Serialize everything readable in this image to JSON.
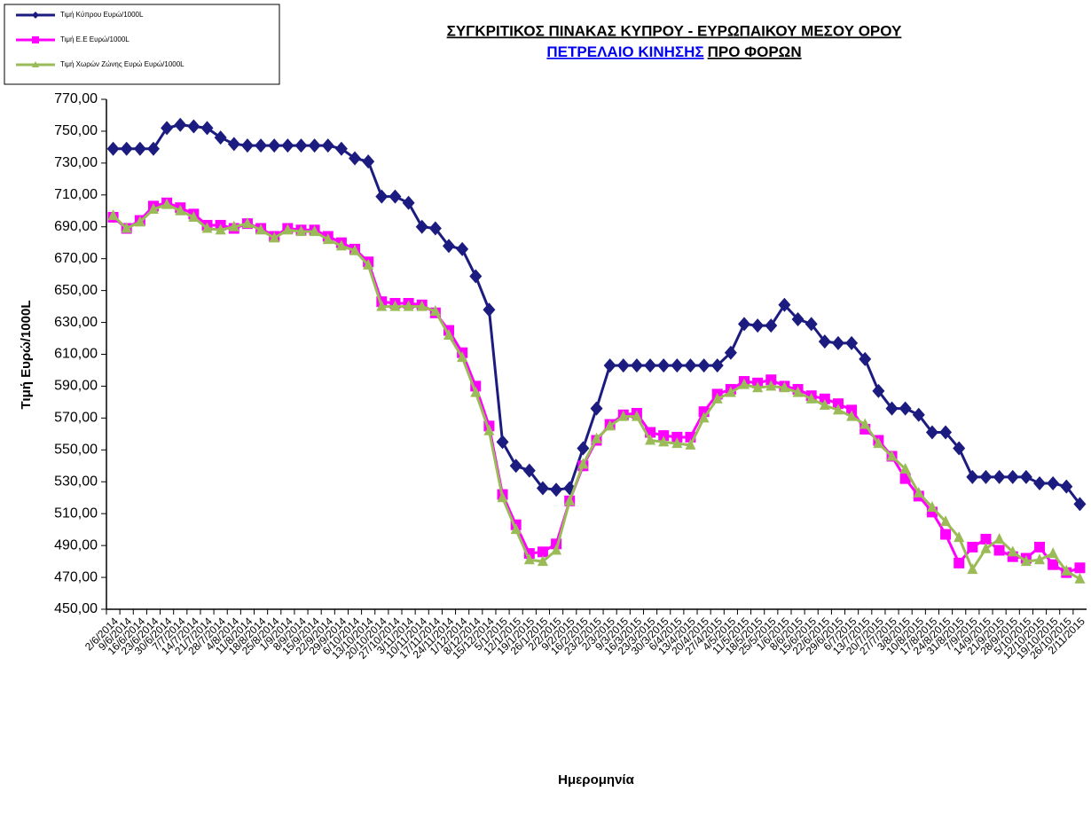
{
  "chart_data": {
    "type": "line",
    "title": "ΣΥΓΚΡΙΤΙΚΟΣ ΠΙΝΑΚΑΣ ΚΥΠΡΟΥ - ΕΥΡΩΠΑΙΚΟΥ ΜΕΣΟΥ ΟΡΟΥ",
    "subtitle_link": "ΠΕΤΡΕΛΑΙΟ ΚΙΝΗΣΗΣ",
    "subtitle": "ΠΡΟ ΦΟΡΩΝ",
    "y_label": "Τιμή Ευρώ/1000L",
    "x_label": "Ημερομηνία",
    "categories": [
      "2/6/2014",
      "9/6/2014",
      "16/6/2014",
      "23/6/2014",
      "30/6/2014",
      "7/7/2014",
      "14/7/2014",
      "21/7/2014",
      "28/7/2014",
      "4/8/2014",
      "11/8/2014",
      "18/8/2014",
      "25/8/2014",
      "1/9/2014",
      "8/9/2014",
      "15/9/2014",
      "22/9/2014",
      "29/9/2014",
      "6/10/2014",
      "13/10/2014",
      "20/10/2014",
      "27/10/2014",
      "3/11/2014",
      "10/11/2014",
      "17/11/2014",
      "24/11/2014",
      "1/12/2014",
      "8/12/2014",
      "15/12/2014",
      "5/1/2015",
      "12/1/2015",
      "19/1/2015",
      "26/1/2015",
      "2/2/2015",
      "9/2/2015",
      "16/2/2015",
      "23/2/2015",
      "2/3/2015",
      "9/3/2015",
      "16/3/2015",
      "23/3/2015",
      "30/3/2015",
      "6/4/2015",
      "13/4/2015",
      "20/4/2015",
      "27/4/2015",
      "4/5/2015",
      "11/5/2015",
      "18/5/2015",
      "25/5/2015",
      "1/6/2015",
      "8/6/2015",
      "15/6/2015",
      "22/6/2015",
      "29/6/2015",
      "6/7/2015",
      "13/7/2015",
      "20/7/2015",
      "27/7/2015",
      "3/8/2015",
      "10/8/2015",
      "17/8/2015",
      "24/8/2015",
      "31/8/2015",
      "7/9/2015",
      "14/9/2015",
      "21/9/2015",
      "28/9/2015",
      "5/10/2015",
      "12/10/2015",
      "19/10/2015",
      "26/10/2015",
      "2/11/2015"
    ],
    "series": [
      {
        "name": "Τιμή Κύπρου Ευρώ/1000L",
        "color": "#1c1c80",
        "marker": "diamond",
        "values": [
          739,
          739,
          739,
          739,
          752,
          754,
          753,
          752,
          746,
          742,
          741,
          741,
          741,
          741,
          741,
          741,
          741,
          739,
          733,
          731,
          709,
          709,
          705,
          690,
          689,
          678,
          676,
          659,
          638,
          555,
          540,
          537,
          526,
          525,
          526,
          551,
          576,
          603,
          603,
          603,
          603,
          603,
          603,
          603,
          603,
          603,
          611,
          629,
          628,
          628,
          641,
          632,
          629,
          618,
          617,
          617,
          607,
          587,
          576,
          576,
          572,
          561,
          561,
          551,
          533,
          533,
          533,
          533,
          533,
          529,
          529,
          527,
          516
        ]
      },
      {
        "name": "Τιμή Ε.Ε Ευρώ/1000L",
        "color": "#ff00ff",
        "marker": "square",
        "values": [
          696,
          689,
          694,
          703,
          705,
          702,
          698,
          691,
          691,
          689,
          692,
          689,
          684,
          689,
          688,
          688,
          684,
          680,
          676,
          668,
          643,
          642,
          642,
          641,
          636,
          625,
          611,
          590,
          565,
          522,
          503,
          485,
          486,
          491,
          518,
          540,
          556,
          566,
          572,
          573,
          561,
          559,
          558,
          558,
          574,
          585,
          588,
          593,
          592,
          594,
          590,
          588,
          584,
          582,
          579,
          575,
          563,
          556,
          546,
          532,
          521,
          511,
          497,
          479,
          489,
          494,
          487,
          483,
          482,
          489,
          478,
          473,
          476
        ]
      },
      {
        "name": "Τιμή Χωρών  Ζώνης  Ευρώ Ευρώ/1000L",
        "color": "#9bbb59",
        "marker": "triangle",
        "values": [
          697,
          689,
          693,
          701,
          704,
          700,
          696,
          689,
          688,
          690,
          692,
          688,
          683,
          688,
          687,
          687,
          682,
          678,
          675,
          666,
          640,
          640,
          640,
          640,
          637,
          622,
          608,
          586,
          562,
          520,
          500,
          481,
          480,
          487,
          518,
          541,
          557,
          565,
          571,
          571,
          556,
          555,
          554,
          553,
          570,
          582,
          586,
          591,
          589,
          590,
          589,
          586,
          582,
          578,
          575,
          571,
          566,
          554,
          546,
          538,
          523,
          514,
          505,
          495,
          475,
          488,
          494,
          486,
          480,
          481,
          485,
          474,
          469
        ]
      }
    ],
    "ylim": [
      450,
      770
    ],
    "yticks": [
      {
        "value": 450,
        "label": "450,00"
      },
      {
        "value": 470,
        "label": "470,00"
      },
      {
        "value": 490,
        "label": "490,00"
      },
      {
        "value": 510,
        "label": "510,00"
      },
      {
        "value": 530,
        "label": "530,00"
      },
      {
        "value": 550,
        "label": "550,00"
      },
      {
        "value": 570,
        "label": "570,00"
      },
      {
        "value": 590,
        "label": "590,00"
      },
      {
        "value": 610,
        "label": "610,00"
      },
      {
        "value": 630,
        "label": "630,00"
      },
      {
        "value": 650,
        "label": "650,00"
      },
      {
        "value": 670,
        "label": "670,00"
      },
      {
        "value": 690,
        "label": "690,00"
      },
      {
        "value": 710,
        "label": "710,00"
      },
      {
        "value": 730,
        "label": "730,00"
      },
      {
        "value": 750,
        "label": "750,00"
      },
      {
        "value": 770,
        "label": "770,00"
      }
    ],
    "legend": "top-left",
    "grid": false
  }
}
